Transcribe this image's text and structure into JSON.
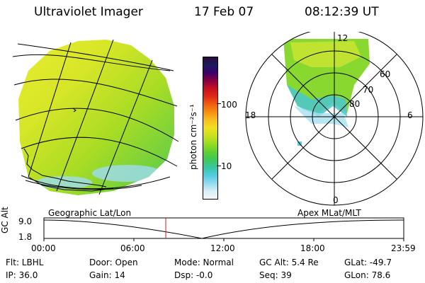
{
  "header": {
    "instrument": "Ultraviolet Imager",
    "date": "17 Feb 07",
    "time": "08:12:39 UT"
  },
  "colorbar": {
    "unit_label": "photon cm⁻²s⁻¹",
    "ticks": [
      "100",
      "10"
    ],
    "colors": [
      "#2a0a3a",
      "#1a1a60",
      "#3a006a",
      "#8a0040",
      "#c81020",
      "#e02818",
      "#f06010",
      "#f59010",
      "#f7c020",
      "#f0e020",
      "#c8e020",
      "#98dc20",
      "#60d030",
      "#40c858",
      "#38c8a0",
      "#50cce0",
      "#90d8f0",
      "#d8eef6",
      "#f4f8fa"
    ]
  },
  "polar_plot": {
    "mlt_labels": [
      "12",
      "18",
      "6",
      "0"
    ],
    "lat_labels": [
      "60",
      "70",
      "80"
    ]
  },
  "timeline": {
    "axis_title": "GC Alt",
    "y_ticks": [
      "9.0",
      "1.8"
    ],
    "left_label": "Geographic Lat/Lon",
    "right_label": "Apex MLat/MLT",
    "x_ticks": [
      "00:00",
      "06:00",
      "12:00",
      "18:00",
      "23:59"
    ],
    "marker_color": "#d01818"
  },
  "info": {
    "filter": "Flt: LBHL",
    "ip": "IP: 36.0",
    "door": "Door: Open",
    "gain": "Gain: 14",
    "mode": "Mode: Normal",
    "dsp": "Dsp:  -0.0",
    "gc_alt": "GC Alt: 5.4 Re",
    "seq": "Seq: 39",
    "glat": "GLat: -49.7",
    "glon": "GLon:  78.6"
  }
}
